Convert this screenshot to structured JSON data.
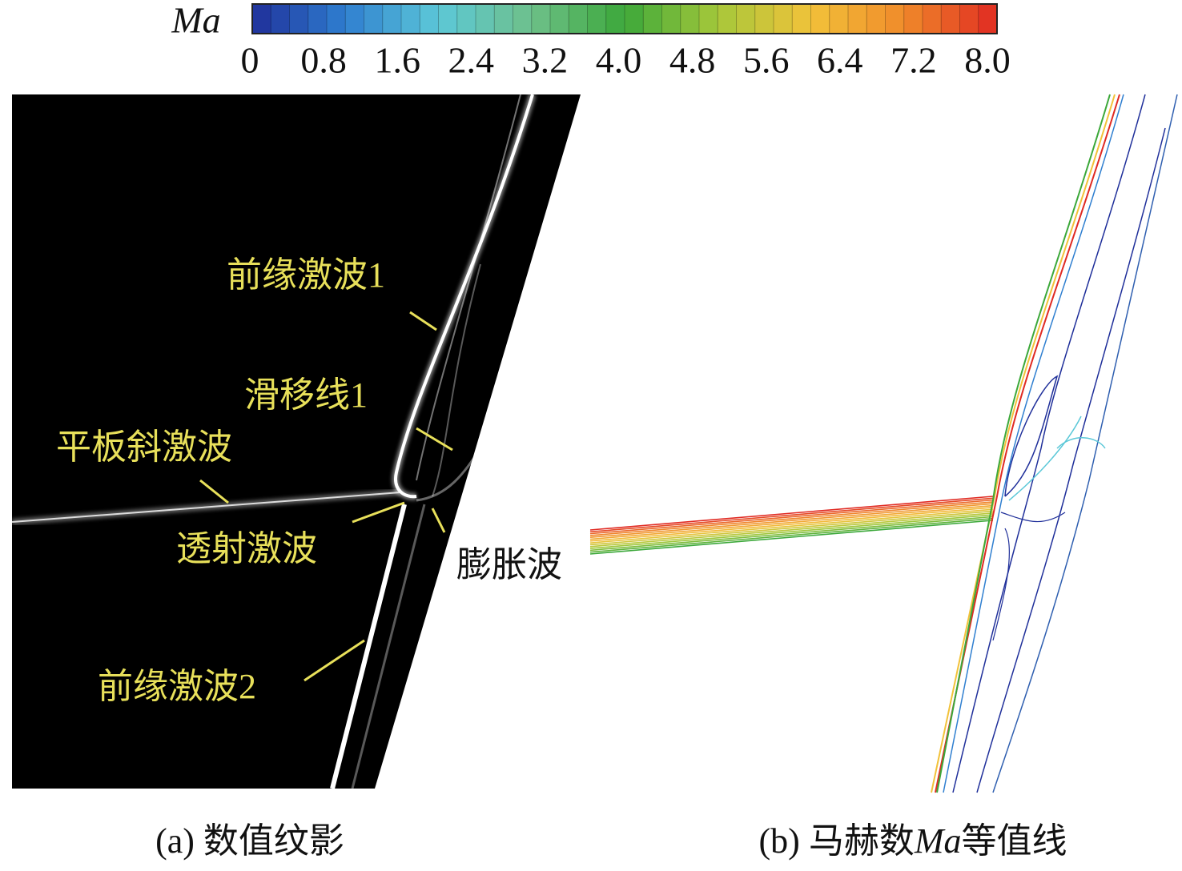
{
  "colorbar": {
    "label": "Ma",
    "range": [
      0,
      8
    ],
    "levels": 40,
    "colors": [
      "#1f2f9a",
      "#2f7fd0",
      "#5cc8d8",
      "#6ec08a",
      "#3ca83a",
      "#a6c83a",
      "#f2c23a",
      "#f08a2a",
      "#e02a22"
    ],
    "ticks": [
      0,
      0.8,
      1.6,
      2.4,
      3.2,
      {
        "value": 4,
        "label": "4.0"
      },
      4.8,
      5.6,
      6.4,
      7.2,
      {
        "value": 8,
        "label": "8.0"
      }
    ]
  },
  "panel_a": {
    "annotations": [
      "前缘激波1",
      "滑移线1",
      "平板斜激波",
      "透射激波",
      "膨胀波",
      "前缘激波2"
    ],
    "caption": "(a) 数值纹影"
  },
  "panel_b": {
    "caption": [
      "(b) 马赫数",
      "Ma",
      "等值线"
    ]
  }
}
